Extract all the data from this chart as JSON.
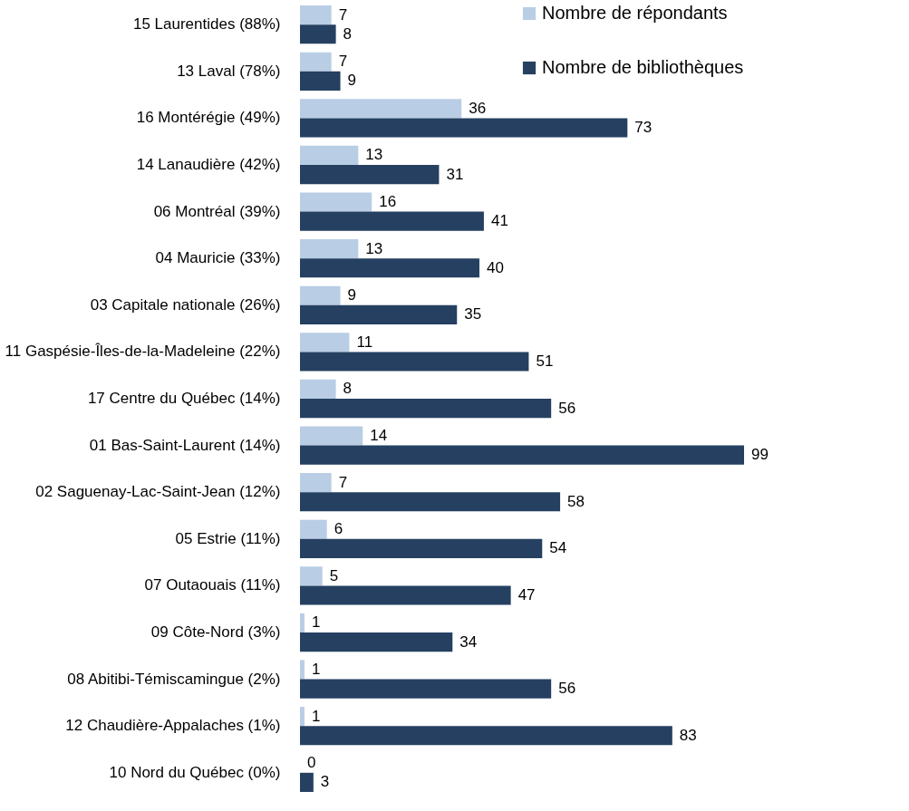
{
  "chart_data": {
    "type": "bar",
    "orientation": "horizontal",
    "data_labels": true,
    "legend": "top right",
    "grid": false,
    "categories": [
      "15 Laurentides (88%)",
      "13 Laval (78%)",
      "16 Montérégie (49%)",
      "14 Lanaudière (42%)",
      "06 Montréal (39%)",
      "04 Mauricie (33%)",
      "03 Capitale nationale (26%)",
      "11 Gaspésie-Îles-de-la-Madeleine (22%)",
      "17 Centre du Québec (14%)",
      "01 Bas-Saint-Laurent (14%)",
      "02 Saguenay-Lac-Saint-Jean (12%)",
      "05 Estrie (11%)",
      "07 Outaouais (11%)",
      "09 Côte-Nord (3%)",
      "08 Abitibi-Témiscamingue (2%)",
      "12 Chaudière-Appalaches (1%)",
      "10 Nord du Québec (0%)"
    ],
    "series": [
      {
        "name": "Nombre de répondants",
        "color": "#b9cde5",
        "values": [
          7,
          7,
          36,
          13,
          16,
          13,
          9,
          11,
          8,
          14,
          7,
          6,
          5,
          1,
          1,
          1,
          0
        ]
      },
      {
        "name": "Nombre de bibliothèques",
        "color": "#254061",
        "values": [
          8,
          9,
          73,
          31,
          41,
          40,
          35,
          51,
          56,
          99,
          58,
          54,
          47,
          34,
          56,
          83,
          3
        ]
      }
    ]
  }
}
